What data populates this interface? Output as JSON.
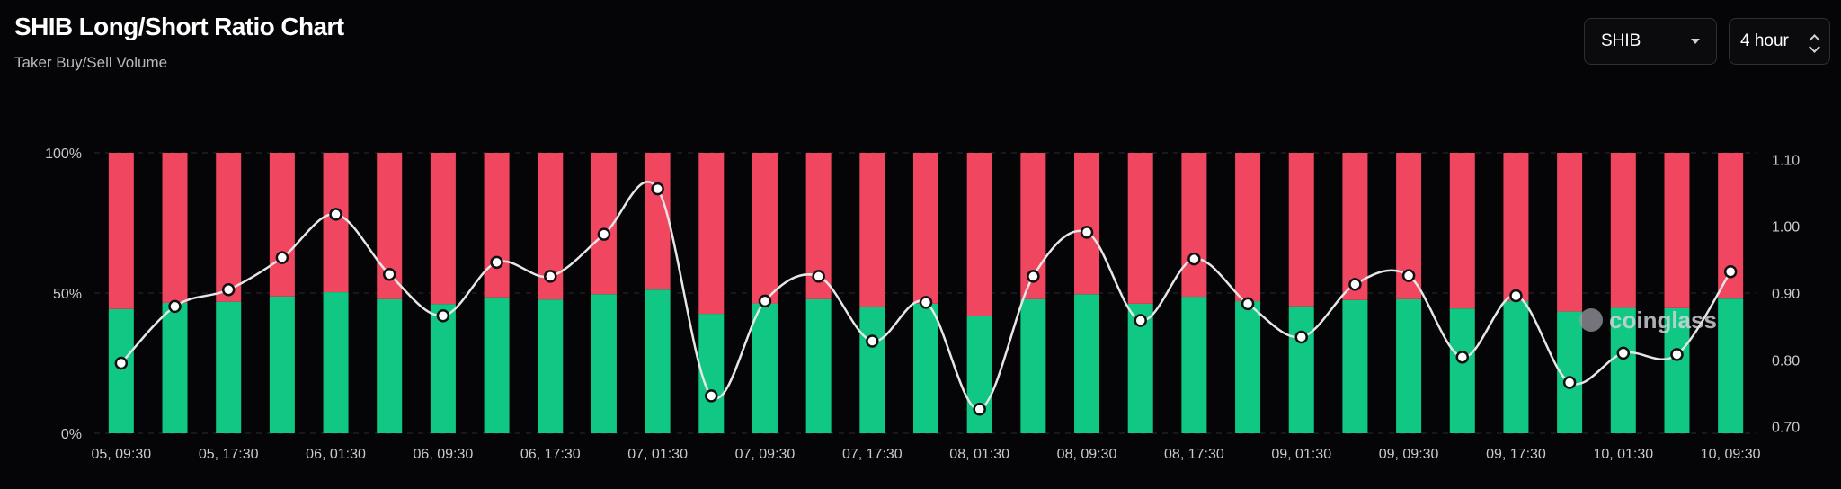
{
  "header": {
    "title": "SHIB Long/Short Ratio Chart",
    "subtitle": "Taker Buy/Sell Volume"
  },
  "controls": {
    "coin_select": "SHIB",
    "interval_select": "4 hour"
  },
  "watermark": "coinglass",
  "colors": {
    "background": "#050507",
    "long": "#10c784",
    "short": "#f0465f",
    "line": "#e6e6e6",
    "grid": "#2a2a30"
  },
  "chart_data": {
    "type": "bar",
    "stacked": true,
    "xlabels": [
      "05, 09:30",
      "",
      "05, 17:30",
      "",
      "06, 01:30",
      "",
      "06, 09:30",
      "",
      "06, 17:30",
      "",
      "07, 01:30",
      "",
      "07, 09:30",
      "",
      "07, 17:30",
      "",
      "08, 01:30",
      "",
      "08, 09:30",
      "",
      "08, 17:30",
      "",
      "09, 01:30",
      "",
      "09, 09:30",
      "",
      "09, 17:30",
      "",
      "10, 01:30",
      "",
      "10, 09:30"
    ],
    "series": [
      {
        "name": "Long",
        "axis": "left",
        "values": [
          44.3,
          46.5,
          46.9,
          48.8,
          50.3,
          47.8,
          46.1,
          48.5,
          47.7,
          49.6,
          51.2,
          42.6,
          46.3,
          47.8,
          45.1,
          46.2,
          41.8,
          47.8,
          49.6,
          46.2,
          48.7,
          47.1,
          45.3,
          47.5,
          47.8,
          44.5,
          47.1,
          43.4,
          44.7,
          44.6,
          48.0
        ]
      },
      {
        "name": "Short",
        "axis": "left",
        "values": [
          55.7,
          53.5,
          53.1,
          51.2,
          49.7,
          52.2,
          53.9,
          51.5,
          52.3,
          50.4,
          48.8,
          57.4,
          53.7,
          52.2,
          54.9,
          53.8,
          58.2,
          52.2,
          50.4,
          53.8,
          51.3,
          52.9,
          54.7,
          52.5,
          52.2,
          55.5,
          52.9,
          56.6,
          55.3,
          55.4,
          52.0
        ]
      },
      {
        "axis": "right",
        "type": "line",
        "values": [
          0.795,
          0.88,
          0.905,
          0.953,
          1.018,
          0.928,
          0.866,
          0.946,
          0.925,
          0.988,
          1.056,
          0.746,
          0.888,
          0.925,
          0.828,
          0.886,
          0.726,
          0.925,
          0.991,
          0.859,
          0.951,
          0.884,
          0.834,
          0.913,
          0.926,
          0.804,
          0.896,
          0.766,
          0.81,
          0.808,
          0.932
        ]
      }
    ],
    "y_left": {
      "ticks": [
        "0%",
        "50%",
        "100%"
      ],
      "range": [
        0,
        100
      ]
    },
    "y_right": {
      "ticks": [
        "0.70",
        "0.80",
        "0.90",
        "1.00",
        "1.10"
      ],
      "range": [
        0.69,
        1.11
      ]
    },
    "grid": true
  }
}
